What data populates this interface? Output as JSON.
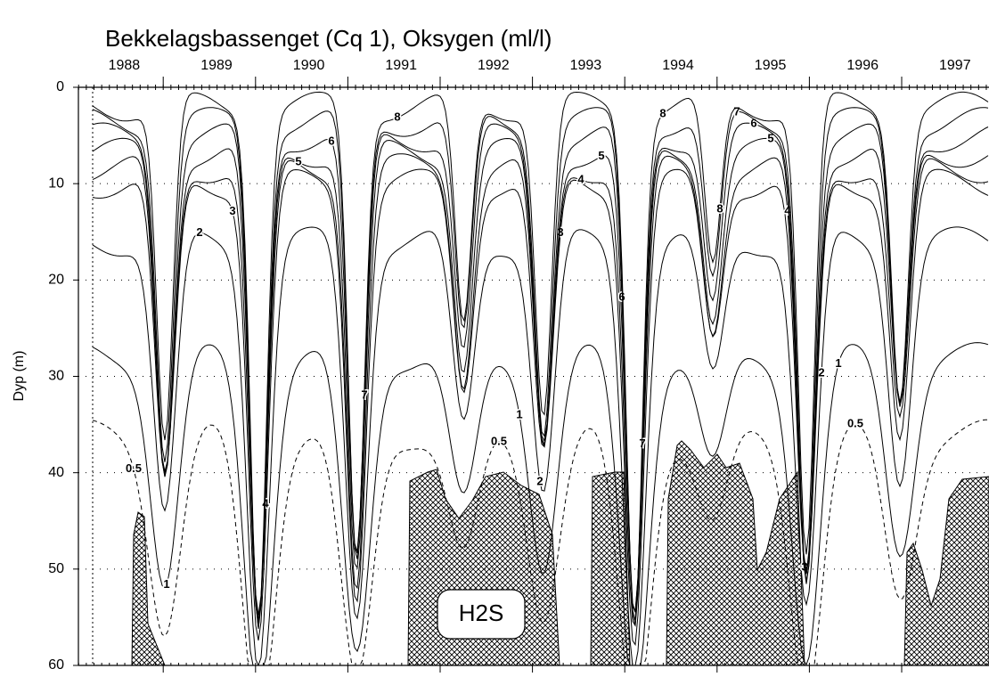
{
  "chart_data": {
    "type": "contour",
    "title": "Bekkelagsbassenget (Cq 1), Oksygen (ml/l)",
    "y_label": "Dyp (m)",
    "categories": [
      "1988",
      "1989",
      "1990",
      "1991",
      "1992",
      "1993",
      "1994",
      "1995",
      "1996",
      "1997"
    ],
    "ylim": [
      0,
      60
    ],
    "yticks": [
      0,
      10,
      20,
      30,
      40,
      50,
      60
    ],
    "levels": [
      0.5,
      1,
      2,
      3,
      4,
      5,
      6,
      7,
      8
    ],
    "annotation": "H2S",
    "grid": true,
    "color": "#000000"
  }
}
